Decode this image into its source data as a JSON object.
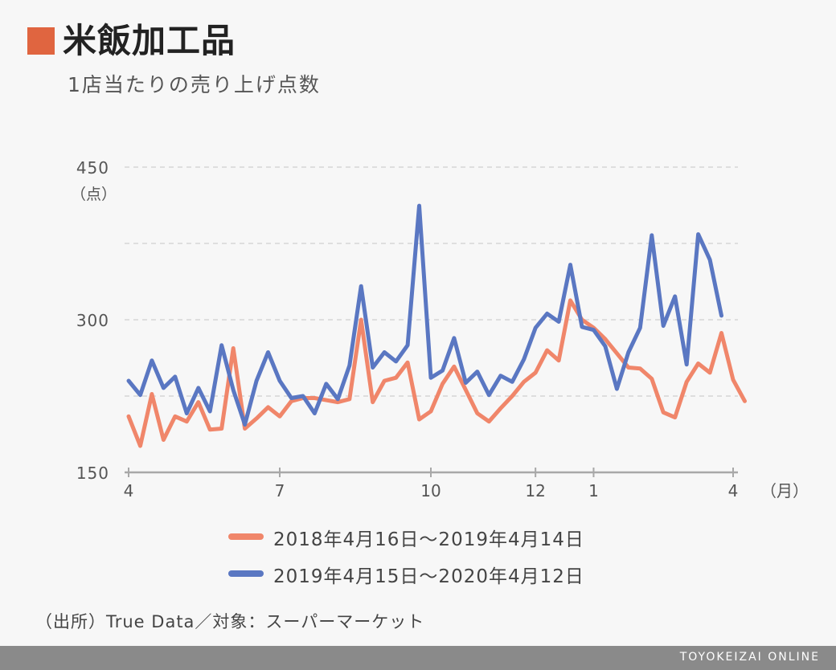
{
  "title": "米飯加工品",
  "subtitle": "1店当たりの売り上げ点数",
  "accent_color": "#e06540",
  "source": "（出所）True Data／対象：スーパーマーケット",
  "footer": "TOYOKEIZAI ONLINE",
  "chart_data": {
    "type": "line",
    "ylim": [
      150,
      450
    ],
    "y_ticks": [
      150,
      300,
      450
    ],
    "y_unit": "（点）",
    "x_unit": "（月）",
    "x_ticks": [
      {
        "week": 0,
        "label": "4"
      },
      {
        "week": 13,
        "label": "7"
      },
      {
        "week": 26,
        "label": "10"
      },
      {
        "week": 35,
        "label": "12"
      },
      {
        "week": 40,
        "label": "1"
      },
      {
        "week": 52,
        "label": "4"
      }
    ],
    "grid": true,
    "legend_position": "bottom",
    "series": [
      {
        "name": "2018年4月16日～2019年4月14日",
        "color": "#f0866a",
        "values": [
          205,
          176,
          227,
          182,
          205,
          200,
          219,
          192,
          193,
          272,
          193,
          203,
          214,
          205,
          220,
          223,
          223,
          221,
          219,
          222,
          300,
          219,
          240,
          243,
          258,
          202,
          210,
          237,
          254,
          231,
          208,
          200,
          213,
          225,
          239,
          248,
          270,
          260,
          319,
          300,
          292,
          281,
          267,
          253,
          252,
          242,
          209,
          204,
          239,
          257,
          248,
          287,
          241,
          220
        ]
      },
      {
        "name": "2019年4月15日～2020年4月12日",
        "color": "#5a77c2",
        "values": [
          240,
          226,
          260,
          233,
          244,
          208,
          233,
          210,
          275,
          231,
          197,
          240,
          268,
          240,
          223,
          225,
          208,
          237,
          222,
          255,
          333,
          253,
          268,
          259,
          275,
          412,
          243,
          250,
          282,
          238,
          249,
          226,
          245,
          239,
          261,
          292,
          306,
          298,
          354,
          293,
          290,
          274,
          232,
          268,
          292,
          383,
          294,
          323,
          256,
          384,
          359,
          304
        ]
      }
    ]
  }
}
